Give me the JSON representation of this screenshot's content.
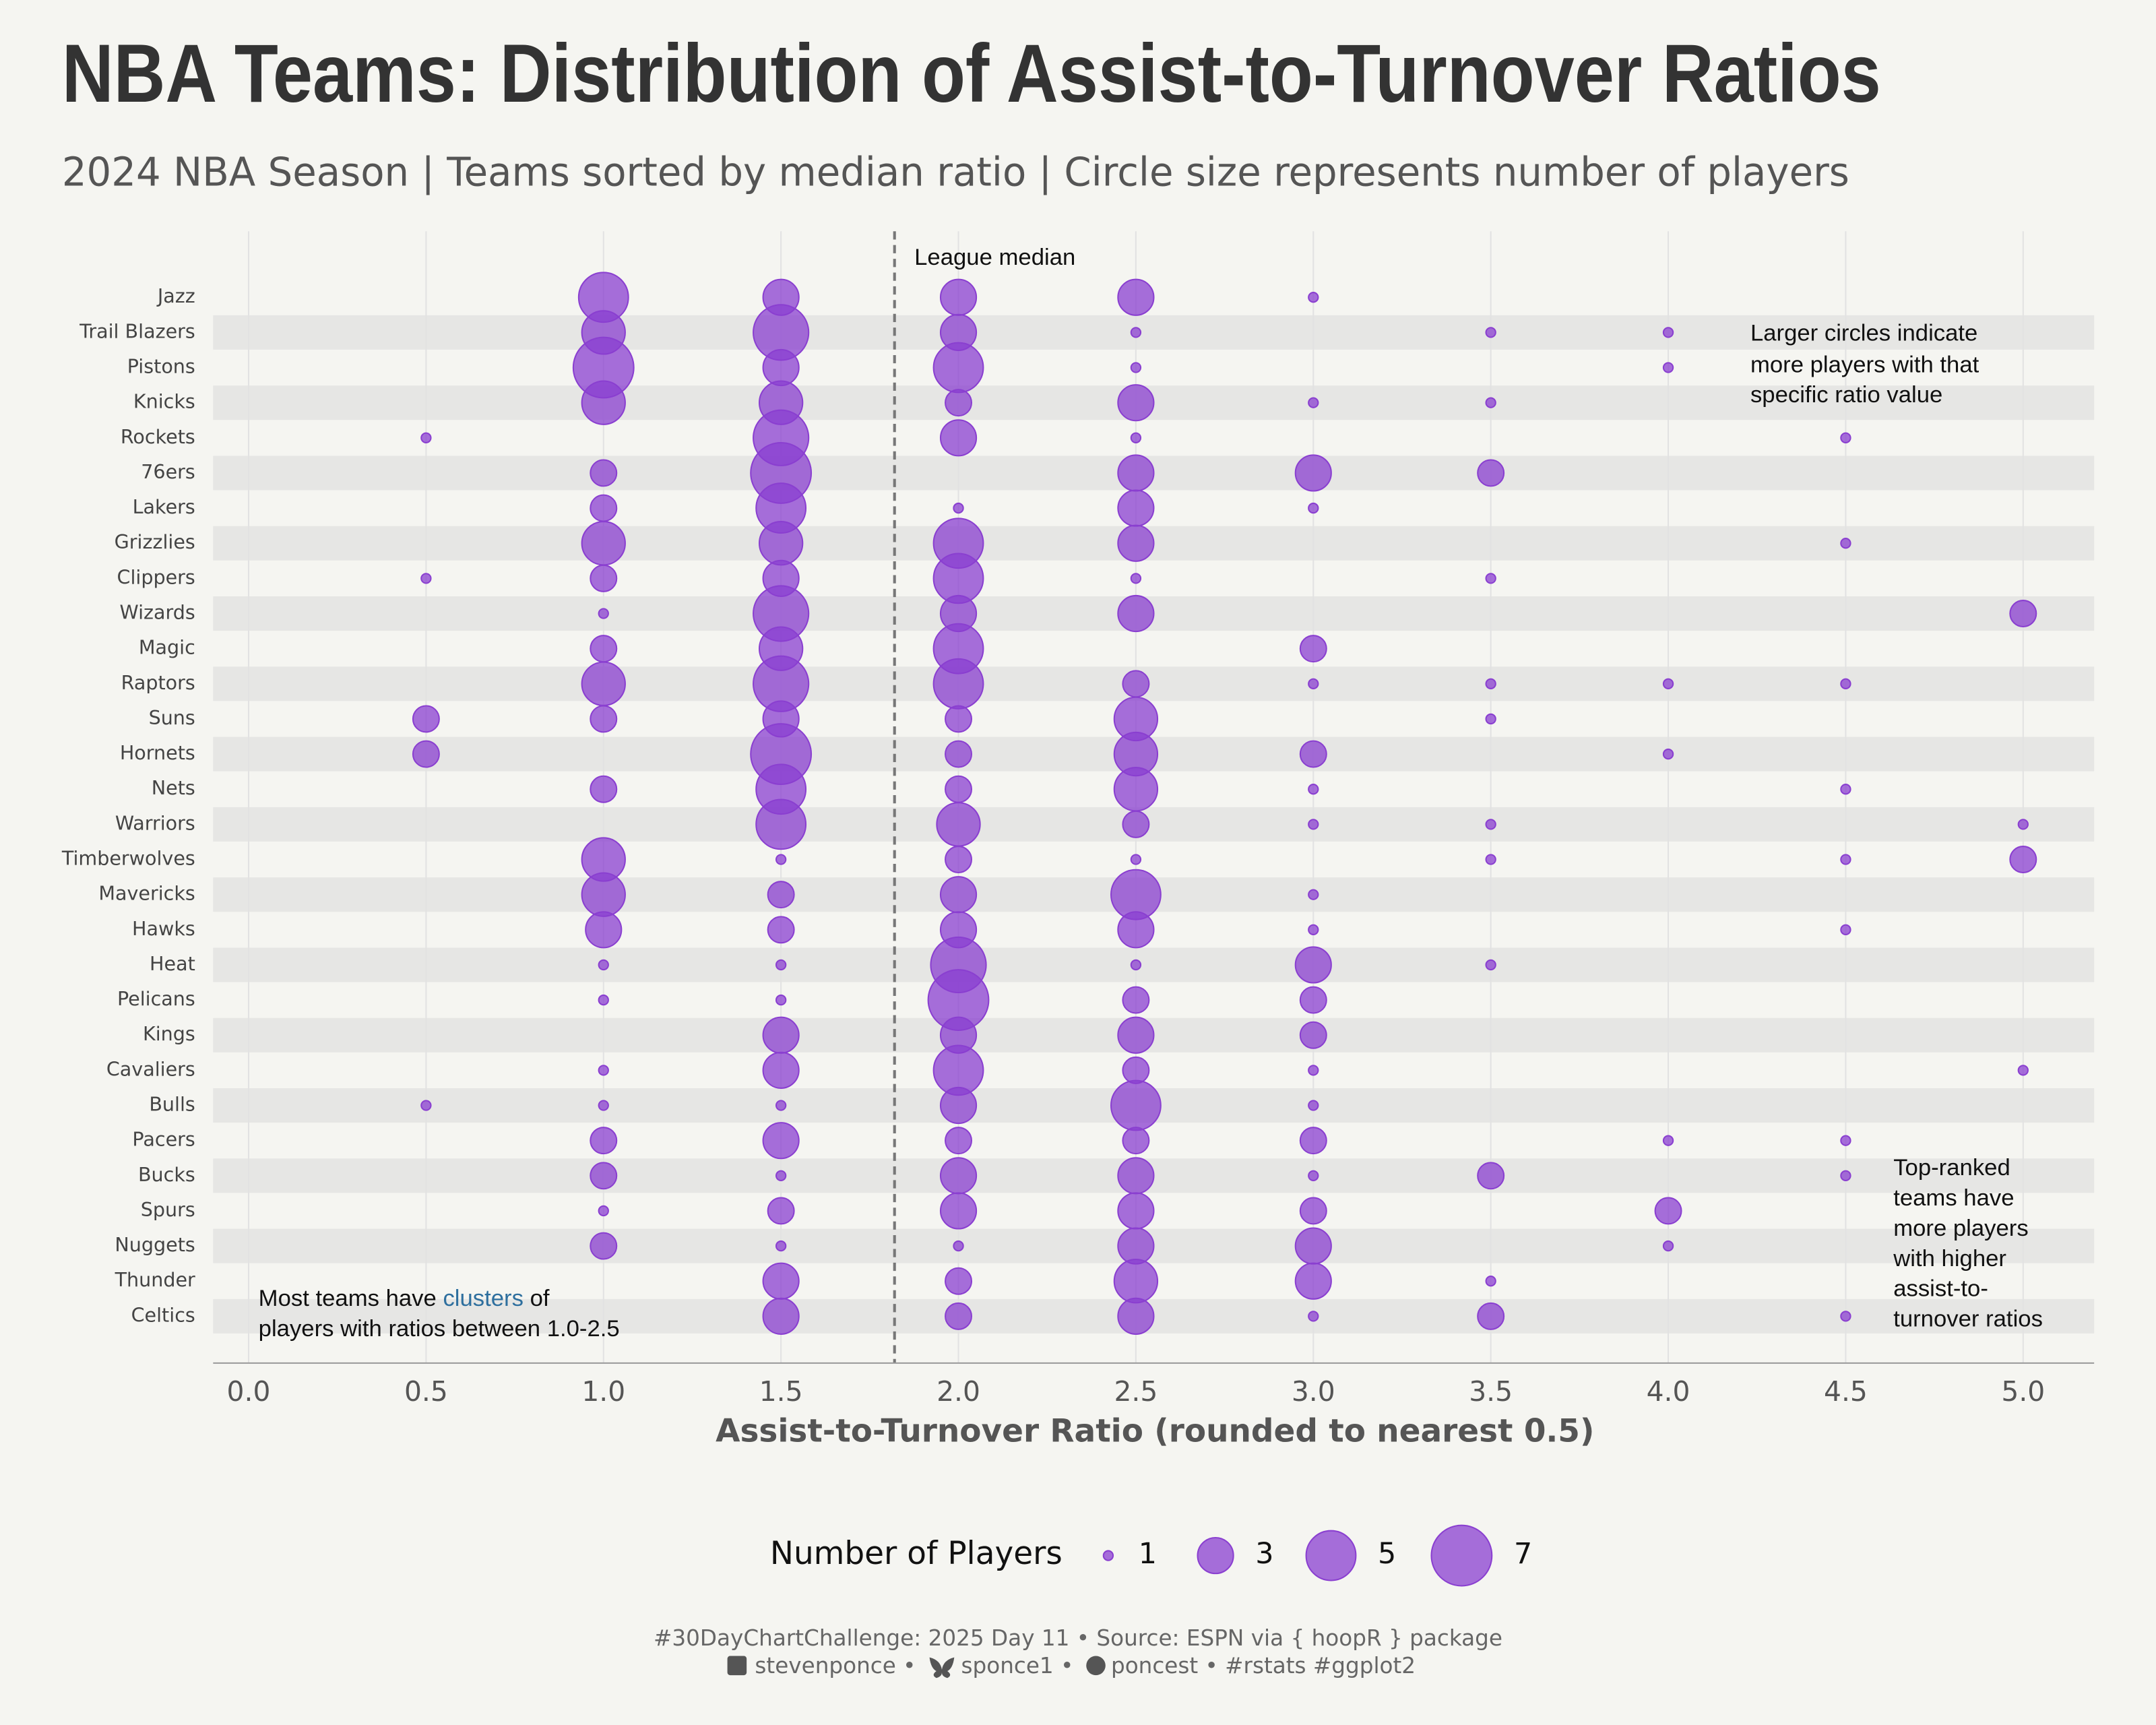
{
  "chart_data": {
    "type": "bubble",
    "title": "NBA Teams: Distribution of Assist-to-Turnover Ratios",
    "subtitle": "2024 NBA Season | Teams sorted by median ratio | Circle size represents number of players",
    "x_label": "Assist-to-Turnover Ratio (rounded to nearest 0.5)",
    "xlim": [
      -0.1,
      5.2
    ],
    "xticks": [
      {
        "value": 0,
        "label": "0.0"
      },
      0.5,
      {
        "value": 1,
        "label": "1.0"
      },
      1.5,
      {
        "value": 2,
        "label": "2.0"
      },
      2.5,
      {
        "value": 3,
        "label": "3.0"
      },
      3.5,
      {
        "value": 4,
        "label": "4.0"
      },
      4.5,
      {
        "value": 5,
        "label": "5.0"
      }
    ],
    "grid": true,
    "color": "#8a3fd0",
    "median_line": 1.82,
    "median_label": "League median",
    "legend_title": "Number of Players",
    "legend_sizes": [
      1,
      3,
      5,
      7
    ],
    "series": [
      {
        "name": "Jazz",
        "x": [
          1.0,
          1.5,
          2.0,
          2.5,
          3.0
        ],
        "sizes": [
          5,
          3,
          3,
          3,
          1
        ]
      },
      {
        "name": "Trail Blazers",
        "x": [
          1.0,
          1.5,
          2.0,
          2.5,
          3.5,
          4.0
        ],
        "sizes": [
          4,
          6,
          3,
          1,
          1,
          1
        ]
      },
      {
        "name": "Pistons",
        "x": [
          1.0,
          1.5,
          2.0,
          2.5,
          4.0
        ],
        "sizes": [
          7,
          3,
          5,
          1,
          1
        ]
      },
      {
        "name": "Knicks",
        "x": [
          1.0,
          1.5,
          2.0,
          2.5,
          3.0,
          3.5
        ],
        "sizes": [
          4,
          4,
          2,
          3,
          1,
          1
        ]
      },
      {
        "name": "Rockets",
        "x": [
          0.5,
          1.5,
          2.0,
          2.5,
          4.5
        ],
        "sizes": [
          1,
          6,
          3,
          1,
          1
        ]
      },
      {
        "name": "76ers",
        "x": [
          1.0,
          1.5,
          2.5,
          3.0,
          3.5
        ],
        "sizes": [
          2,
          7,
          3,
          3,
          2
        ]
      },
      {
        "name": "Lakers",
        "x": [
          1.0,
          1.5,
          2.0,
          2.5,
          3.0
        ],
        "sizes": [
          2,
          5,
          1,
          3,
          1
        ]
      },
      {
        "name": "Grizzlies",
        "x": [
          1.0,
          1.5,
          2.0,
          2.5,
          4.5
        ],
        "sizes": [
          4,
          4,
          5,
          3,
          1
        ]
      },
      {
        "name": "Clippers",
        "x": [
          0.5,
          1.0,
          1.5,
          2.0,
          2.5,
          3.5
        ],
        "sizes": [
          1,
          2,
          3,
          5,
          1,
          1
        ]
      },
      {
        "name": "Wizards",
        "x": [
          1.0,
          1.5,
          2.0,
          2.5,
          5.0
        ],
        "sizes": [
          1,
          6,
          3,
          3,
          2
        ]
      },
      {
        "name": "Magic",
        "x": [
          1.0,
          1.5,
          2.0,
          3.0
        ],
        "sizes": [
          2,
          4,
          5,
          2
        ]
      },
      {
        "name": "Raptors",
        "x": [
          1.0,
          1.5,
          2.0,
          2.5,
          3.0,
          3.5,
          4.0,
          4.5
        ],
        "sizes": [
          4,
          6,
          5,
          2,
          1,
          1,
          1,
          1
        ]
      },
      {
        "name": "Suns",
        "x": [
          0.5,
          1.0,
          1.5,
          2.0,
          2.5,
          3.5
        ],
        "sizes": [
          2,
          2,
          3,
          2,
          4,
          1
        ]
      },
      {
        "name": "Hornets",
        "x": [
          0.5,
          1.5,
          2.0,
          2.5,
          3.0,
          4.0
        ],
        "sizes": [
          2,
          7,
          2,
          4,
          2,
          1
        ]
      },
      {
        "name": "Nets",
        "x": [
          1.0,
          1.5,
          2.0,
          2.5,
          3.0,
          4.5
        ],
        "sizes": [
          2,
          5,
          2,
          4,
          1,
          1
        ]
      },
      {
        "name": "Warriors",
        "x": [
          1.5,
          2.0,
          2.5,
          3.0,
          3.5,
          5.0
        ],
        "sizes": [
          5,
          4,
          2,
          1,
          1,
          1
        ]
      },
      {
        "name": "Timberwolves",
        "x": [
          1.0,
          1.5,
          2.0,
          2.5,
          3.5,
          4.5,
          5.0
        ],
        "sizes": [
          4,
          1,
          2,
          1,
          1,
          1,
          2
        ]
      },
      {
        "name": "Mavericks",
        "x": [
          1.0,
          1.5,
          2.0,
          2.5,
          3.0
        ],
        "sizes": [
          4,
          2,
          3,
          5,
          1
        ]
      },
      {
        "name": "Hawks",
        "x": [
          1.0,
          1.5,
          2.0,
          2.5,
          3.0,
          4.5
        ],
        "sizes": [
          3,
          2,
          3,
          3,
          1,
          1
        ]
      },
      {
        "name": "Heat",
        "x": [
          1.0,
          1.5,
          2.0,
          2.5,
          3.0,
          3.5
        ],
        "sizes": [
          1,
          1,
          6,
          1,
          3,
          1
        ]
      },
      {
        "name": "Pelicans",
        "x": [
          1.0,
          1.5,
          2.0,
          2.5,
          3.0
        ],
        "sizes": [
          1,
          1,
          7,
          2,
          2
        ]
      },
      {
        "name": "Kings",
        "x": [
          1.5,
          2.0,
          2.5,
          3.0
        ],
        "sizes": [
          3,
          3,
          3,
          2
        ]
      },
      {
        "name": "Cavaliers",
        "x": [
          1.0,
          1.5,
          2.0,
          2.5,
          3.0,
          5.0
        ],
        "sizes": [
          1,
          3,
          5,
          2,
          1,
          1
        ]
      },
      {
        "name": "Bulls",
        "x": [
          0.5,
          1.0,
          1.5,
          2.0,
          2.5,
          3.0
        ],
        "sizes": [
          1,
          1,
          1,
          3,
          5,
          1
        ]
      },
      {
        "name": "Pacers",
        "x": [
          1.0,
          1.5,
          2.0,
          2.5,
          3.0,
          4.0,
          4.5
        ],
        "sizes": [
          2,
          3,
          2,
          2,
          2,
          1,
          1
        ]
      },
      {
        "name": "Bucks",
        "x": [
          1.0,
          1.5,
          2.0,
          2.5,
          3.0,
          3.5,
          4.5
        ],
        "sizes": [
          2,
          1,
          3,
          3,
          1,
          2,
          1
        ]
      },
      {
        "name": "Spurs",
        "x": [
          1.0,
          1.5,
          2.0,
          2.5,
          3.0,
          4.0
        ],
        "sizes": [
          1,
          2,
          3,
          3,
          2,
          2
        ]
      },
      {
        "name": "Nuggets",
        "x": [
          1.0,
          1.5,
          2.0,
          2.5,
          3.0,
          4.0
        ],
        "sizes": [
          2,
          1,
          1,
          3,
          3,
          1
        ]
      },
      {
        "name": "Thunder",
        "x": [
          1.5,
          2.0,
          2.5,
          3.0,
          3.5
        ],
        "sizes": [
          3,
          2,
          4,
          3,
          1
        ]
      },
      {
        "name": "Celtics",
        "x": [
          1.5,
          2.0,
          2.5,
          3.0,
          3.5,
          4.5
        ],
        "sizes": [
          3,
          2,
          3,
          1,
          2,
          1
        ]
      }
    ],
    "annotations": {
      "top_right": [
        "Larger circles indicate",
        "more players with that",
        "specific ratio value"
      ],
      "bottom_right": [
        "Top-ranked",
        "teams have",
        "more players",
        "with higher",
        "assist-to-",
        "turnover ratios"
      ],
      "bottom_left": {
        "line1": [
          "Most teams have ",
          "clusters",
          " of"
        ],
        "line2": "players with ratios between 1.0-2.5"
      }
    },
    "caption": {
      "line1": "#30DayChartChallenge: 2025 Day 11 • Source: ESPN via { hoopR } package",
      "line2": [
        "stevenponce •",
        "sponce1 •",
        "poncest • #rstats #ggplot2"
      ]
    }
  }
}
